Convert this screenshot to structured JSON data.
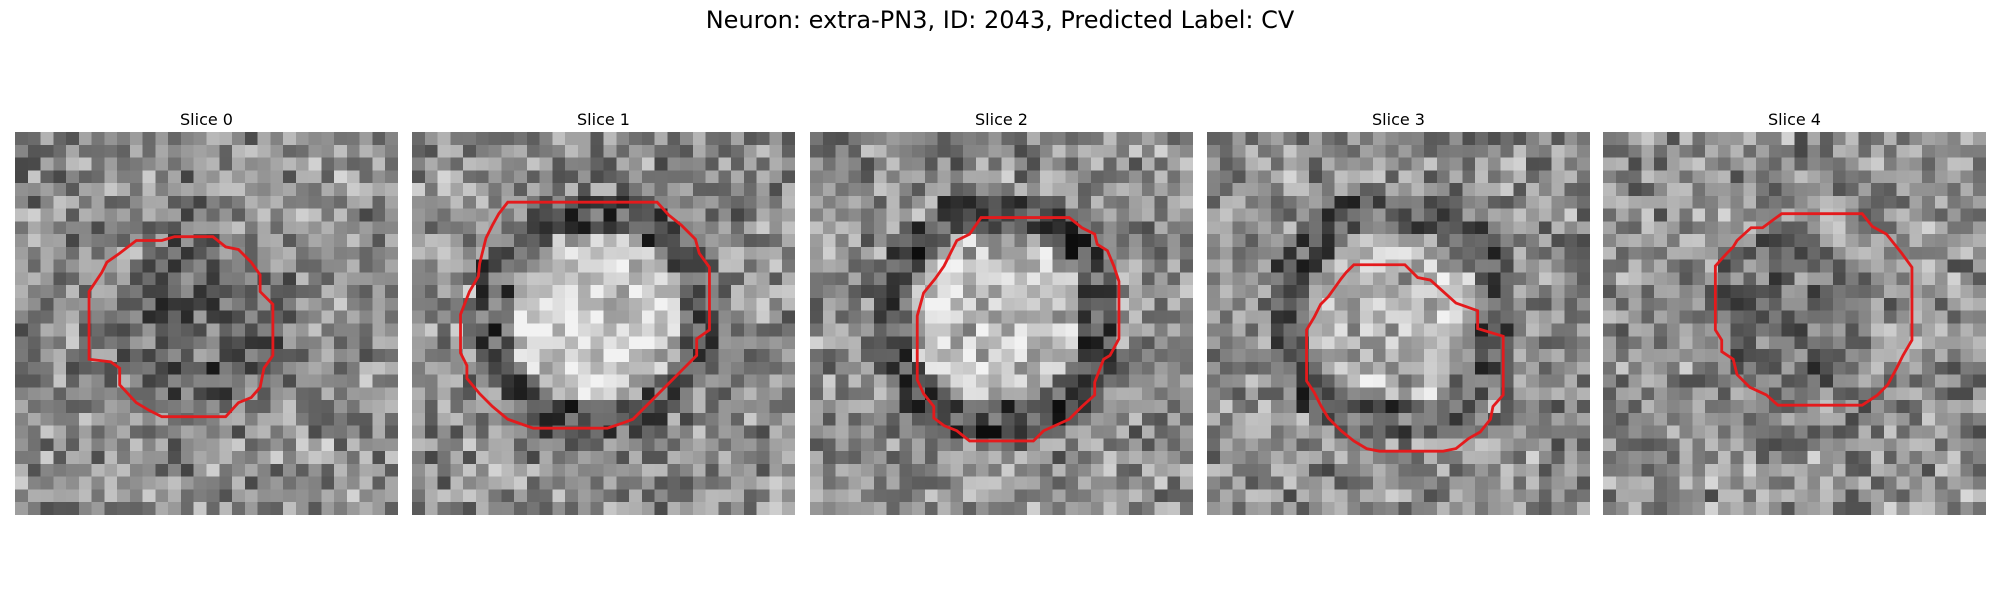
{
  "figure": {
    "title": "Neuron: extra-PN3, ID: 2043, Predicted Label: CV"
  },
  "slices": [
    {
      "label": "Slice 0",
      "seed": 11,
      "core": 0.38,
      "rim": 0.52
    },
    {
      "label": "Slice 1",
      "seed": 23,
      "core": 0.78,
      "rim": 0.34
    },
    {
      "label": "Slice 2",
      "seed": 37,
      "core": 0.74,
      "rim": 0.3
    },
    {
      "label": "Slice 3",
      "seed": 53,
      "core": 0.7,
      "rim": 0.36
    },
    {
      "label": "Slice 4",
      "seed": 71,
      "core": 0.44,
      "rim": 0.55
    }
  ],
  "contour_color": "#e41a1c",
  "colormap": "gray"
}
